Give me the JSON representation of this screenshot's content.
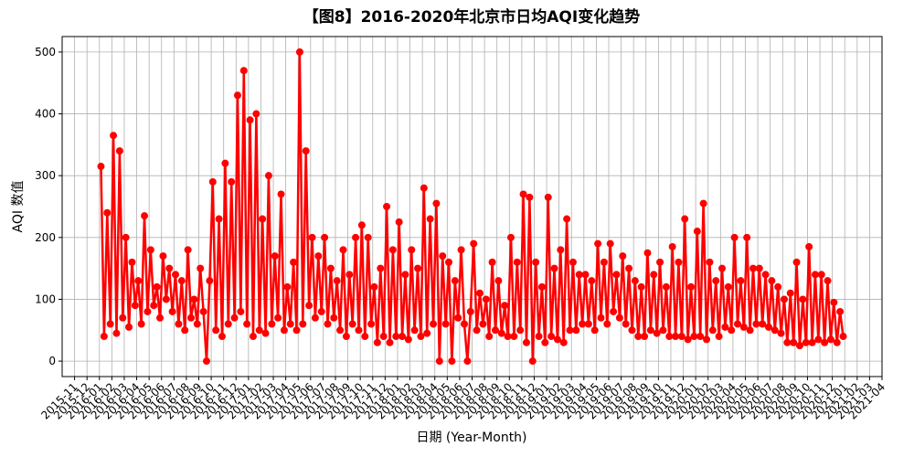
{
  "chart_data": {
    "type": "line",
    "title": "【图8】2016-2020年北京市日均AQI变化趋势",
    "x_label": "日期 (Year-Month)",
    "y_label": "AQI 数值",
    "color": "#ff0000",
    "grid": true,
    "x": [
      "2016-01",
      "2016-02",
      "2016-03",
      "2016-04",
      "2016-05",
      "2016-06",
      "2016-07",
      "2016-08",
      "2016-09",
      "2016-10",
      "2016-11",
      "2016-12",
      "2017-01",
      "2017-02",
      "2017-03",
      "2017-04",
      "2017-05",
      "2017-06",
      "2017-07",
      "2017-08",
      "2017-09",
      "2017-10",
      "2017-11",
      "2017-12",
      "2018-01",
      "2018-02",
      "2018-03",
      "2018-04",
      "2018-05",
      "2018-06",
      "2018-07",
      "2018-08",
      "2018-09",
      "2018-10",
      "2018-11",
      "2018-12",
      "2019-01",
      "2019-02",
      "2019-03",
      "2019-04",
      "2019-05",
      "2019-06",
      "2019-07",
      "2019-08",
      "2019-09",
      "2019-10",
      "2019-11",
      "2019-12",
      "2020-01",
      "2020-02",
      "2020-03",
      "2020-04",
      "2020-05",
      "2020-06",
      "2020-07",
      "2020-08",
      "2020-09",
      "2020-10",
      "2020-11",
      "2020-12"
    ],
    "values": [
      [
        315,
        40,
        240,
        60
      ],
      [
        365,
        45,
        340,
        70
      ],
      [
        200,
        55,
        160,
        90
      ],
      [
        130,
        60,
        235,
        80
      ],
      [
        180,
        90,
        120,
        70
      ],
      [
        170,
        100,
        150,
        80
      ],
      [
        140,
        60,
        130,
        50
      ],
      [
        180,
        70,
        100,
        60
      ],
      [
        150,
        80,
        0,
        130
      ],
      [
        290,
        50,
        230,
        40
      ],
      [
        320,
        60,
        290,
        70
      ],
      [
        430,
        80,
        470,
        60
      ],
      [
        390,
        40,
        400,
        50
      ],
      [
        230,
        45,
        300,
        60
      ],
      [
        170,
        70,
        270,
        50
      ],
      [
        120,
        60,
        160,
        50
      ],
      [
        500,
        60,
        340,
        90
      ],
      [
        200,
        70,
        170,
        80
      ],
      [
        200,
        60,
        150,
        70
      ],
      [
        130,
        50,
        180,
        40
      ],
      [
        140,
        60,
        200,
        50
      ],
      [
        220,
        40,
        200,
        60
      ],
      [
        120,
        30,
        150,
        40
      ],
      [
        250,
        30,
        180,
        40
      ],
      [
        225,
        40,
        140,
        35
      ],
      [
        180,
        50,
        150,
        40
      ],
      [
        280,
        45,
        230,
        60
      ],
      [
        255,
        0,
        170,
        60
      ],
      [
        160,
        0,
        130,
        70
      ],
      [
        180,
        60,
        0,
        80
      ],
      [
        190,
        50,
        110,
        60
      ],
      [
        100,
        40,
        160,
        50
      ],
      [
        130,
        45,
        90,
        40
      ],
      [
        200,
        40,
        160,
        50
      ],
      [
        270,
        30,
        265,
        0
      ],
      [
        160,
        40,
        120,
        30
      ],
      [
        265,
        40,
        150,
        35
      ],
      [
        180,
        30,
        230,
        50
      ],
      [
        160,
        50,
        140,
        60
      ],
      [
        140,
        60,
        130,
        50
      ],
      [
        190,
        70,
        160,
        60
      ],
      [
        190,
        80,
        140,
        70
      ],
      [
        170,
        60,
        150,
        50
      ],
      [
        130,
        40,
        120,
        40
      ],
      [
        175,
        50,
        140,
        45
      ],
      [
        160,
        50,
        120,
        40
      ],
      [
        185,
        40,
        160,
        40
      ],
      [
        230,
        35,
        120,
        40
      ],
      [
        210,
        40,
        255,
        35
      ],
      [
        160,
        50,
        130,
        40
      ],
      [
        150,
        55,
        120,
        50
      ],
      [
        200,
        60,
        130,
        55
      ],
      [
        200,
        50,
        150,
        60
      ],
      [
        150,
        60,
        140,
        55
      ],
      [
        130,
        50,
        120,
        45
      ],
      [
        100,
        30,
        110,
        30
      ],
      [
        160,
        25,
        100,
        30
      ],
      [
        185,
        30,
        140,
        35
      ],
      [
        140,
        30,
        130,
        35
      ],
      [
        95,
        30,
        80,
        40
      ]
    ],
    "xlim": [
      "2015-10",
      "2021-04"
    ],
    "xticks": [
      "2015-11",
      "2015-12",
      "2016-01",
      "2016-02",
      "2016-03",
      "2016-04",
      "2016-05",
      "2016-06",
      "2016-07",
      "2016-08",
      "2016-09",
      "2016-10",
      "2016-11",
      "2016-12",
      "2017-01",
      "2017-02",
      "2017-03",
      "2017-04",
      "2017-05",
      "2017-06",
      "2017-07",
      "2017-08",
      "2017-09",
      "2017-10",
      "2017-11",
      "2017-12",
      "2018-01",
      "2018-02",
      "2018-03",
      "2018-04",
      "2018-05",
      "2018-06",
      "2018-07",
      "2018-08",
      "2018-09",
      "2018-10",
      "2018-11",
      "2018-12",
      "2019-01",
      "2019-02",
      "2019-03",
      "2019-04",
      "2019-05",
      "2019-06",
      "2019-07",
      "2019-08",
      "2019-09",
      "2019-10",
      "2019-11",
      "2019-12",
      "2020-01",
      "2020-02",
      "2020-03",
      "2020-04",
      "2020-05",
      "2020-06",
      "2020-07",
      "2020-08",
      "2020-09",
      "2020-10",
      "2020-11",
      "2020-12",
      "2021-01",
      "2021-02",
      "2021-03",
      "2021-04"
    ],
    "ylim": [
      -25,
      525
    ],
    "yticks": [
      0,
      100,
      200,
      300,
      400,
      500
    ]
  }
}
